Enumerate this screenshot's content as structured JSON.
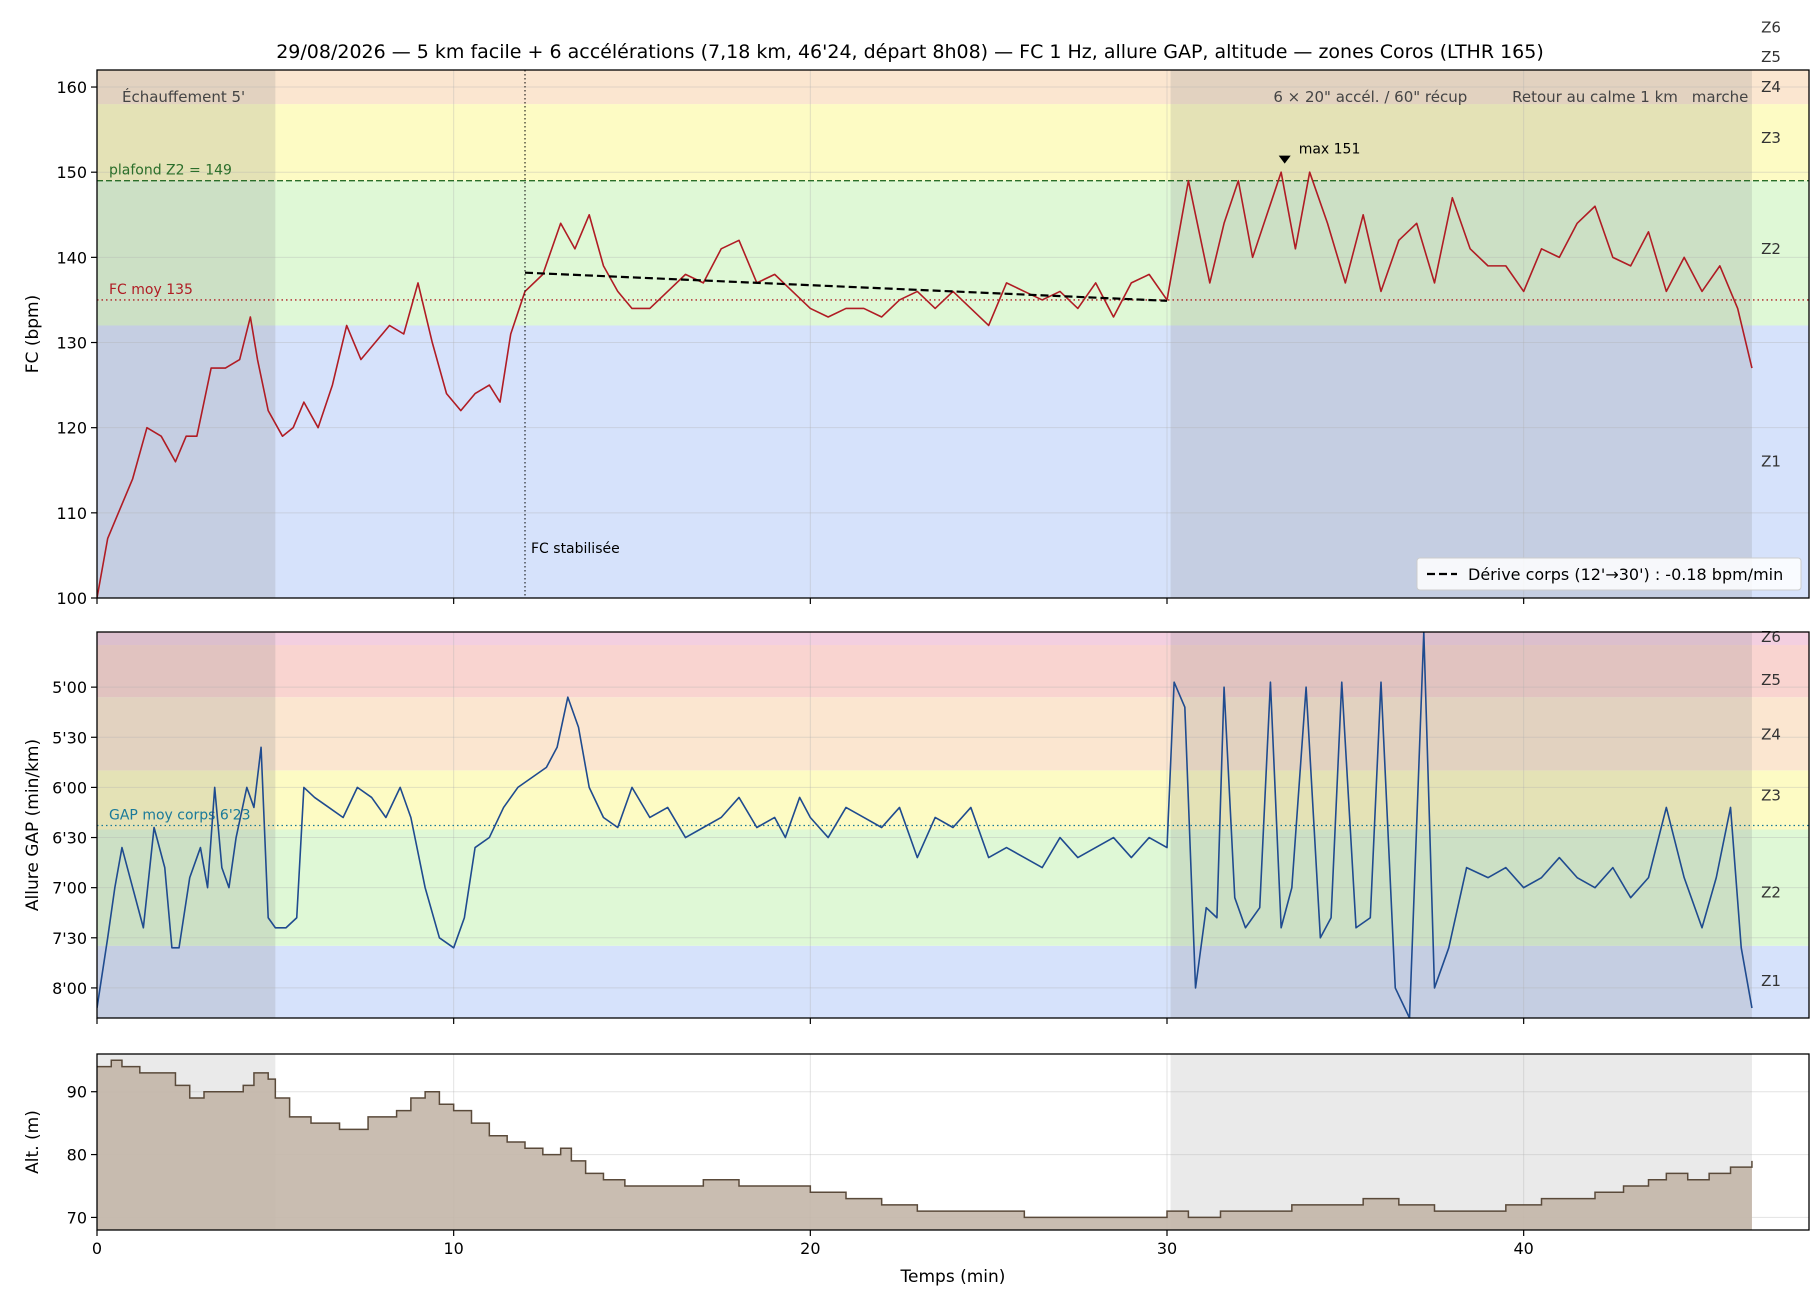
{
  "chart_data": {
    "title": "29/08/2026 — 5 km facile + 6 accélérations (7,18 km, 46'24, départ 8h08) — FC 1 Hz, allure GAP, altitude — zones Coros (LTHR 165)",
    "xlabel": "Temps (min)",
    "x_ticks": [
      0,
      10,
      20,
      30,
      40
    ],
    "xlim": [
      0,
      48
    ],
    "phases": [
      {
        "label": "Échauffement 5'",
        "x0": 0,
        "x1": 5,
        "shaded": true
      },
      {
        "label": "6 × 20\" accél. / 60\" récup",
        "x0": 30.1,
        "x1": 46.4,
        "shaded": true
      },
      {
        "label": "Retour au calme 1 km",
        "x0": 38,
        "x1": 46.4,
        "shaded": false
      },
      {
        "label": "marche",
        "x0": 44,
        "x1": 46.4,
        "shaded": false
      }
    ],
    "panels": [
      {
        "id": "hr",
        "type": "line",
        "ylabel": "FC (bpm)",
        "ylim": [
          100,
          162
        ],
        "y_ticks": [
          100,
          110,
          120,
          130,
          140,
          150,
          160
        ],
        "zones": [
          {
            "name": "Z1",
            "min": 100,
            "max": 132,
            "color": "#d6e2fb"
          },
          {
            "name": "Z2",
            "min": 132,
            "max": 149,
            "color": "#dff8d6"
          },
          {
            "name": "Z3",
            "min": 149,
            "max": 158,
            "color": "#fdfbc4"
          },
          {
            "name": "Z4",
            "min": 158,
            "max": 162,
            "color": "#fbe6d0"
          },
          {
            "name": "Z5",
            "min": 162,
            "max": 166,
            "color": "#f9d4d0"
          },
          {
            "name": "Z6",
            "min": 166,
            "max": 170,
            "color": "#f3cfe0"
          }
        ],
        "zone_label_y": {
          "Z1": 116,
          "Z2": 141,
          "Z3": 154,
          "Z4": 160,
          "Z5": 163.5,
          "Z6": 167
        },
        "series": [
          {
            "color": "#b01c24",
            "x": [
              0,
              0.3,
              0.6,
              1.0,
              1.4,
              1.8,
              2.2,
              2.5,
              2.8,
              3.2,
              3.6,
              4.0,
              4.3,
              4.5,
              4.8,
              5.2,
              5.5,
              5.8,
              6.2,
              6.6,
              7.0,
              7.4,
              7.8,
              8.2,
              8.6,
              9.0,
              9.4,
              9.8,
              10.2,
              10.6,
              11.0,
              11.3,
              11.6,
              12.0,
              12.5,
              13.0,
              13.4,
              13.8,
              14.2,
              14.6,
              15.0,
              15.5,
              16.0,
              16.5,
              17.0,
              17.5,
              18.0,
              18.5,
              19.0,
              19.5,
              20.0,
              20.5,
              21.0,
              21.5,
              22.0,
              22.5,
              23.0,
              23.5,
              24.0,
              24.5,
              25.0,
              25.5,
              26.0,
              26.5,
              27.0,
              27.5,
              28.0,
              28.5,
              29.0,
              29.5,
              30.0,
              30.3,
              30.6,
              30.9,
              31.2,
              31.6,
              32.0,
              32.4,
              32.8,
              33.2,
              33.6,
              34.0,
              34.5,
              35.0,
              35.5,
              36.0,
              36.5,
              37.0,
              37.5,
              38.0,
              38.5,
              39.0,
              39.5,
              40.0,
              40.5,
              41.0,
              41.5,
              42.0,
              42.5,
              43.0,
              43.5,
              44.0,
              44.5,
              45.0,
              45.5,
              46.0,
              46.4
            ],
            "y": [
              100,
              107,
              110,
              114,
              120,
              119,
              116,
              119,
              119,
              127,
              127,
              128,
              133,
              128,
              122,
              119,
              120,
              123,
              120,
              125,
              132,
              128,
              130,
              132,
              131,
              137,
              130,
              124,
              122,
              124,
              125,
              123,
              131,
              136,
              138,
              144,
              141,
              145,
              139,
              136,
              134,
              134,
              136,
              138,
              137,
              141,
              142,
              137,
              138,
              136,
              134,
              133,
              134,
              134,
              133,
              135,
              136,
              134,
              136,
              134,
              132,
              137,
              136,
              135,
              136,
              134,
              137,
              133,
              137,
              138,
              135,
              142,
              149,
              143,
              137,
              144,
              149,
              140,
              145,
              150,
              141,
              150,
              144,
              137,
              145,
              136,
              142,
              144,
              137,
              147,
              141,
              139,
              139,
              136,
              141,
              140,
              144,
              146,
              140,
              139,
              143,
              136,
              140,
              136,
              139,
              134,
              127
            ]
          }
        ],
        "hlines": [
          {
            "y": 149,
            "label": "plafond Z2 = 149",
            "color": "#2a6e2a",
            "style": "dashed"
          },
          {
            "y": 135,
            "label": "FC moy 135",
            "color": "#b01c24",
            "style": "dotted"
          }
        ],
        "vline": {
          "x": 12,
          "label": "FC stabilisée"
        },
        "trend": {
          "x": [
            12,
            30
          ],
          "y": [
            138.2,
            134.9
          ],
          "label": "Dérive corps (12'→30') : -0.18 bpm/min"
        },
        "annotation": {
          "x": 33.3,
          "y": 151,
          "label": "max 151"
        }
      },
      {
        "id": "pace",
        "type": "line",
        "ylabel": "Allure GAP (min/km)",
        "y_unit": "min/km (axis inverted, faster at top)",
        "ylim": [
          8.3,
          4.45
        ],
        "y_ticks": [
          8.0,
          7.5,
          7.0,
          6.5,
          6.0,
          5.5,
          5.0
        ],
        "y_tick_labels": [
          "8'00",
          "7'30",
          "7'00",
          "6'30",
          "6'00",
          "5'30",
          "5'00"
        ],
        "zones": [
          {
            "name": "Z1",
            "min": 7.58,
            "max": 8.3,
            "color": "#d6e2fb"
          },
          {
            "name": "Z2",
            "min": 6.42,
            "max": 7.58,
            "color": "#dff8d6"
          },
          {
            "name": "Z3",
            "min": 5.83,
            "max": 6.42,
            "color": "#fdfbc4"
          },
          {
            "name": "Z4",
            "min": 5.1,
            "max": 5.83,
            "color": "#fbe6d0"
          },
          {
            "name": "Z5",
            "min": 4.58,
            "max": 5.1,
            "color": "#f9d4d0"
          },
          {
            "name": "Z6",
            "min": 4.45,
            "max": 4.58,
            "color": "#f3cfe0"
          }
        ],
        "zone_label_y": {
          "Z1": 7.93,
          "Z2": 7.05,
          "Z3": 6.08,
          "Z4": 5.47,
          "Z5": 4.93,
          "Z6": 4.5
        },
        "series": [
          {
            "color": "#1f4b8f",
            "x": [
              0,
              0.3,
              0.5,
              0.7,
              1.0,
              1.3,
              1.6,
              1.9,
              2.1,
              2.3,
              2.6,
              2.9,
              3.1,
              3.3,
              3.5,
              3.7,
              3.9,
              4.2,
              4.4,
              4.6,
              4.8,
              5.0,
              5.3,
              5.6,
              5.8,
              6.1,
              6.5,
              6.9,
              7.3,
              7.7,
              8.1,
              8.5,
              8.8,
              9.2,
              9.6,
              10.0,
              10.3,
              10.6,
              11.0,
              11.4,
              11.8,
              12.2,
              12.6,
              12.9,
              13.2,
              13.5,
              13.8,
              14.2,
              14.6,
              15.0,
              15.5,
              16.0,
              16.5,
              17.0,
              17.5,
              18.0,
              18.5,
              19.0,
              19.3,
              19.7,
              20.0,
              20.5,
              21.0,
              21.5,
              22.0,
              22.5,
              23.0,
              23.5,
              24.0,
              24.5,
              25.0,
              25.5,
              26.0,
              26.5,
              27.0,
              27.5,
              28.0,
              28.5,
              29.0,
              29.5,
              30.0,
              30.2,
              30.5,
              30.8,
              31.1,
              31.4,
              31.6,
              31.9,
              32.2,
              32.6,
              32.9,
              33.2,
              33.5,
              33.9,
              34.3,
              34.6,
              34.9,
              35.3,
              35.7,
              36.0,
              36.4,
              36.8,
              37.2,
              37.5,
              37.9,
              38.4,
              39.0,
              39.5,
              40.0,
              40.5,
              41.0,
              41.5,
              42.0,
              42.5,
              43.0,
              43.5,
              44.0,
              44.5,
              45.0,
              45.4,
              45.8,
              46.1,
              46.4
            ],
            "y": [
              8.2,
              7.5,
              7.0,
              6.6,
              7.0,
              7.4,
              6.4,
              6.8,
              7.6,
              7.6,
              6.9,
              6.6,
              7.0,
              6.0,
              6.8,
              7.0,
              6.5,
              6.0,
              6.2,
              5.6,
              7.3,
              7.4,
              7.4,
              7.3,
              6.0,
              6.1,
              6.2,
              6.3,
              6.0,
              6.1,
              6.3,
              6.0,
              6.3,
              7.0,
              7.5,
              7.6,
              7.3,
              6.6,
              6.5,
              6.2,
              6.0,
              5.9,
              5.8,
              5.6,
              5.1,
              5.4,
              6.0,
              6.3,
              6.4,
              6.0,
              6.3,
              6.2,
              6.5,
              6.4,
              6.3,
              6.1,
              6.4,
              6.3,
              6.5,
              6.1,
              6.3,
              6.5,
              6.2,
              6.3,
              6.4,
              6.2,
              6.7,
              6.3,
              6.4,
              6.2,
              6.7,
              6.6,
              6.7,
              6.8,
              6.5,
              6.7,
              6.6,
              6.5,
              6.7,
              6.5,
              6.6,
              4.95,
              5.2,
              8.0,
              7.2,
              7.3,
              5.0,
              7.1,
              7.4,
              7.2,
              4.95,
              7.4,
              7.0,
              5.0,
              7.5,
              7.3,
              4.95,
              7.4,
              7.3,
              4.95,
              8.0,
              8.3,
              4.45,
              8.0,
              7.6,
              6.8,
              6.9,
              6.8,
              7.0,
              6.9,
              6.7,
              6.9,
              7.0,
              6.8,
              7.1,
              6.9,
              6.2,
              6.9,
              7.4,
              6.9,
              6.2,
              7.6,
              8.2
            ]
          }
        ],
        "hlines": [
          {
            "y": 6.38,
            "label": "GAP moy corps 6'23",
            "color": "#1a7a9a",
            "style": "dotted"
          }
        ]
      },
      {
        "id": "alt",
        "type": "area",
        "ylabel": "Alt. (m)",
        "ylim": [
          68,
          96
        ],
        "y_ticks": [
          70,
          80,
          90
        ],
        "series": [
          {
            "color": "#5a4a3a",
            "fill": "#c3b6a8",
            "x": [
              0,
              0.4,
              0.7,
              1.2,
              1.8,
              2.2,
              2.6,
              3.0,
              3.6,
              4.1,
              4.4,
              4.8,
              5.0,
              5.4,
              6.0,
              6.8,
              7.6,
              8.4,
              8.8,
              9.2,
              9.6,
              10.0,
              10.5,
              11.0,
              11.5,
              12.0,
              12.5,
              13.0,
              13.3,
              13.7,
              14.2,
              14.8,
              16.0,
              17.0,
              18.0,
              19.0,
              20.0,
              21.0,
              22.0,
              23.0,
              24.0,
              25.0,
              26.0,
              27.0,
              28.0,
              29.0,
              29.8,
              30.0,
              30.6,
              31.5,
              32.5,
              33.5,
              34.5,
              35.5,
              36.5,
              37.5,
              38.5,
              39.5,
              40.5,
              41.5,
              42.0,
              42.8,
              43.5,
              44.0,
              44.6,
              45.2,
              45.8,
              46.4
            ],
            "y": [
              94,
              95,
              94,
              93,
              93,
              91,
              89,
              90,
              90,
              91,
              93,
              92,
              89,
              86,
              85,
              84,
              86,
              87,
              89,
              90,
              88,
              87,
              85,
              83,
              82,
              81,
              80,
              81,
              79,
              77,
              76,
              75,
              75,
              76,
              75,
              75,
              74,
              73,
              72,
              71,
              71,
              71,
              70,
              70,
              70,
              70,
              70,
              71,
              70,
              71,
              71,
              72,
              72,
              73,
              72,
              71,
              71,
              72,
              73,
              73,
              74,
              75,
              76,
              77,
              76,
              77,
              78,
              79
            ]
          }
        ]
      }
    ]
  }
}
